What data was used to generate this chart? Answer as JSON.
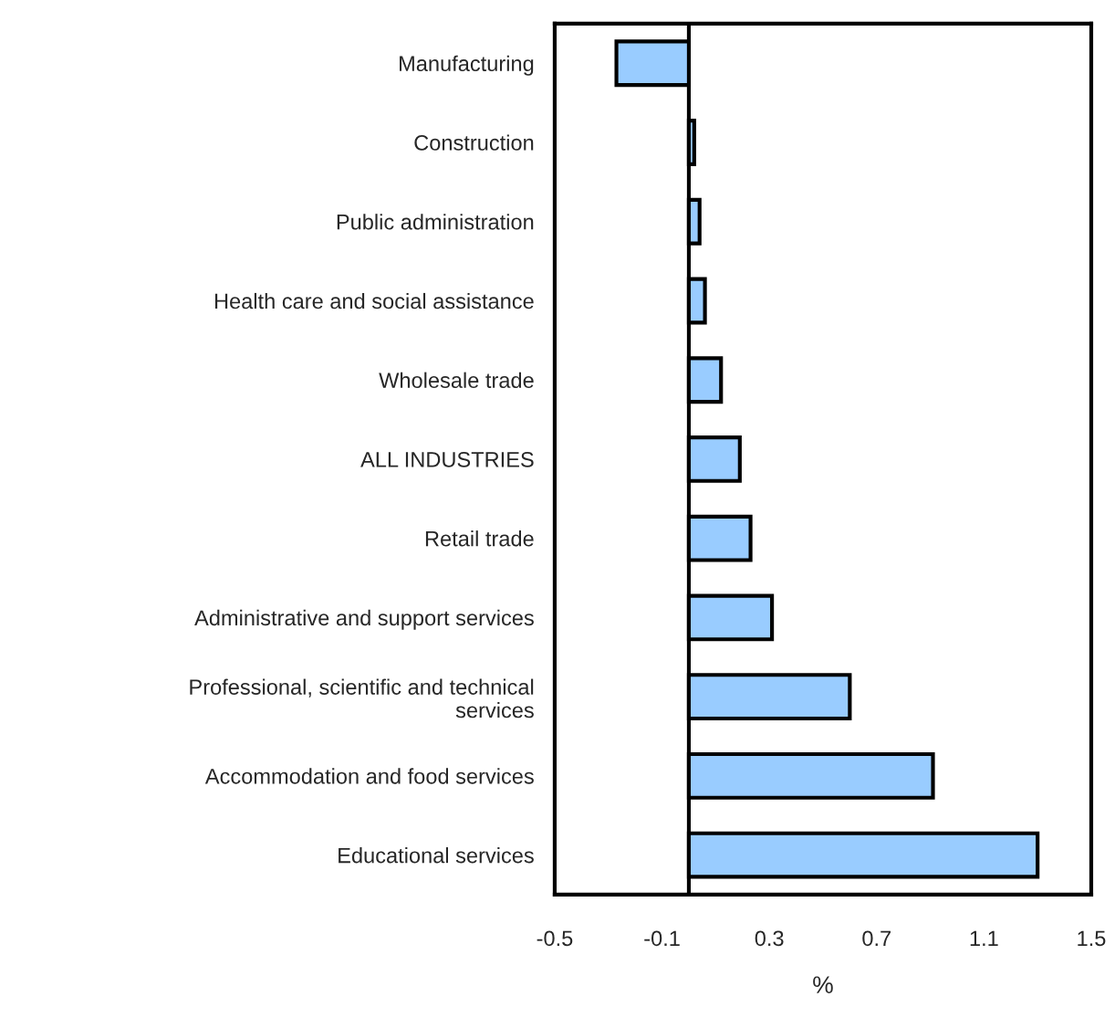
{
  "chart_data": {
    "type": "bar",
    "orientation": "horizontal",
    "xlabel": "%",
    "categories": [
      "Manufacturing",
      "Construction",
      "Public administration",
      "Health care and social assistance",
      "Wholesale trade",
      "ALL INDUSTRIES",
      "Retail trade",
      "Administrative and support services",
      "Professional, scientific and technical services",
      "Accommodation and food services",
      "Educational services"
    ],
    "values": [
      -0.27,
      0.02,
      0.04,
      0.06,
      0.12,
      0.19,
      0.23,
      0.31,
      0.6,
      0.91,
      1.3
    ],
    "color": "#99ccff",
    "xlim": [
      -0.5,
      1.5
    ],
    "xticks": [
      -0.5,
      -0.1,
      0.3,
      0.7,
      1.1,
      1.5
    ],
    "ref_lines": [
      {
        "axis": "x",
        "value": 0,
        "color": "#000000"
      }
    ],
    "grid": false,
    "legend": false
  }
}
